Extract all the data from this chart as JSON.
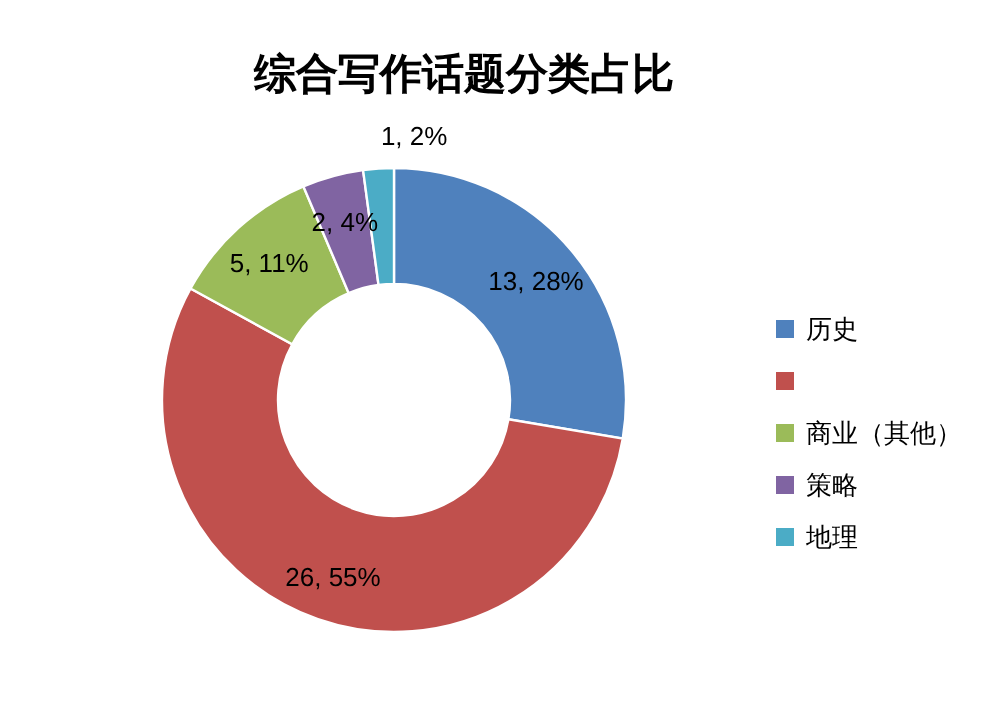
{
  "chart_data": {
    "type": "donut",
    "title": "综合写作话题分类占比",
    "categories": [
      "历史",
      null,
      "商业（其他）",
      "策略",
      "地理"
    ],
    "values": [
      13,
      26,
      5,
      2,
      1
    ],
    "value_labels": [
      "13, 28%",
      "26, 55%",
      "5, 11%",
      "2, 4%",
      "1, 2%"
    ],
    "colors": [
      "#4f81bd",
      "#c0504d",
      "#9bbb59",
      "#8064a2",
      "#4bacc6"
    ],
    "legend": "right"
  }
}
